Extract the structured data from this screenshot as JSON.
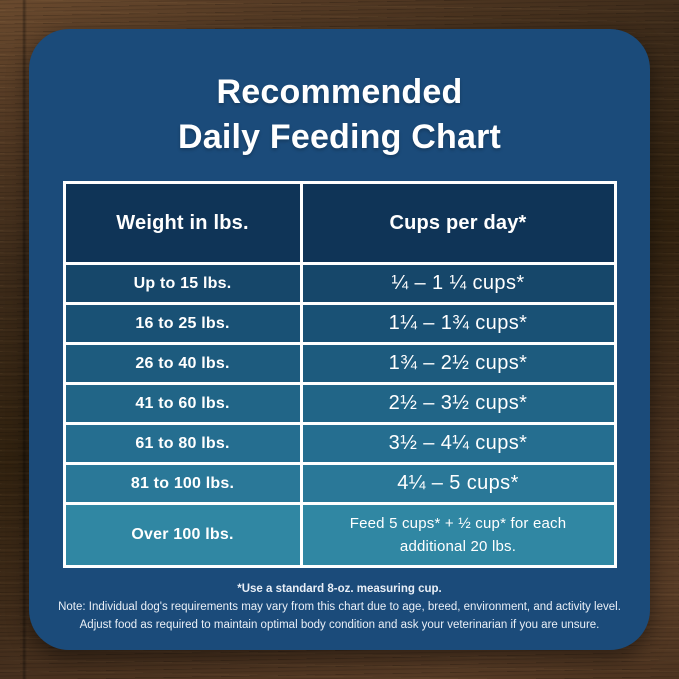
{
  "title": {
    "line1": "Recommended",
    "line2": "Daily Feeding Chart"
  },
  "chart_data": {
    "type": "table",
    "title": "Recommended Daily Feeding Chart",
    "columns": [
      "Weight in lbs.",
      "Cups per day*"
    ],
    "rows": [
      [
        "Up to 15 lbs.",
        "¼ – 1 ¼ cups*"
      ],
      [
        "16 to 25 lbs.",
        "1¼ – 1¾ cups*"
      ],
      [
        "26 to 40 lbs.",
        "1¾ – 2½ cups*"
      ],
      [
        "41 to 60 lbs.",
        "2½ – 3½ cups*"
      ],
      [
        "61 to 80 lbs.",
        "3½ – 4¼ cups*"
      ],
      [
        "81 to 100 lbs.",
        "4¼ – 5 cups*"
      ],
      [
        "Over 100 lbs.",
        "Feed 5 cups* + ½ cup* for each additional 20 lbs."
      ]
    ],
    "footnotes": [
      "*Use a standard 8-oz. measuring cup.",
      "Note: Individual dog's requirements may vary from this chart due to age, breed, environment, and activity level.",
      "Adjust food as required to maintain optimal body condition and ask your veterinarian if you are unsure."
    ],
    "legend_position": "none",
    "grid": "white cell borders"
  },
  "colors": {
    "card_bg": "#1b4b7a",
    "header_bg": "#0f3457",
    "border": "#ffffff",
    "text": "#ffffff",
    "row_bgs": [
      "#16476a",
      "#195175",
      "#1d5b7e",
      "#216587",
      "#256e90",
      "#2a7898",
      "#3087a3"
    ]
  }
}
